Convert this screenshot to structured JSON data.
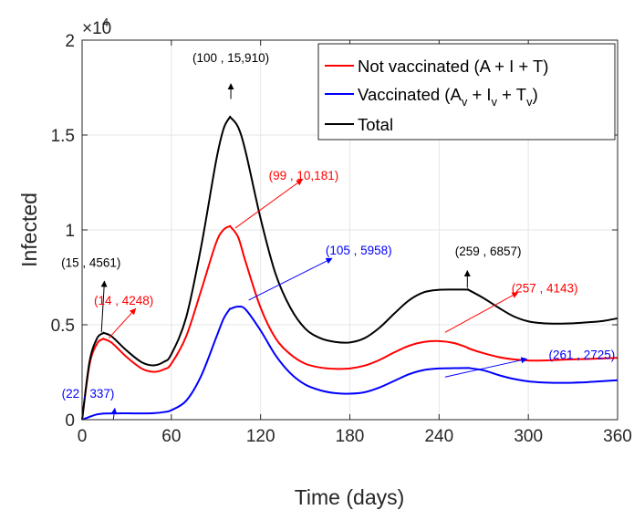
{
  "chart_data": {
    "type": "line",
    "xlabel": "Time (days)",
    "ylabel": "Infected",
    "xlim": [
      0,
      360
    ],
    "ylim": [
      0,
      20000
    ],
    "x_ticks": [
      0,
      60,
      120,
      180,
      240,
      300,
      360
    ],
    "y_ticks": [
      0,
      5000,
      10000,
      15000,
      20000
    ],
    "x_tick_labels": [
      "0",
      "60",
      "120",
      "180",
      "240",
      "300",
      "360"
    ],
    "y_tick_labels": [
      "0",
      "0.5",
      "1",
      "1.5",
      "2"
    ],
    "y_exponent_base": "×10",
    "y_exponent_power": "4",
    "grid": true,
    "legend_position": "top-right",
    "x": [
      0,
      5,
      10,
      14,
      15,
      20,
      30,
      40,
      48,
      55,
      60,
      70,
      80,
      90,
      95,
      99,
      100,
      105,
      110,
      120,
      130,
      140,
      150,
      160,
      170,
      180,
      190,
      200,
      210,
      220,
      230,
      240,
      250,
      259,
      260,
      270,
      280,
      290,
      300,
      310,
      320,
      330,
      340,
      350,
      360
    ],
    "series": [
      {
        "name": "Not vaccinated (A + I + T)",
        "color": "#ff0000",
        "values": [
          0,
          2900,
          4000,
          4248,
          4240,
          4050,
          3300,
          2700,
          2520,
          2650,
          2950,
          4400,
          6800,
          9300,
          10000,
          10181,
          10150,
          9600,
          8300,
          5900,
          4300,
          3450,
          2950,
          2750,
          2680,
          2700,
          2850,
          3150,
          3550,
          3900,
          4100,
          4143,
          4040,
          3800,
          3750,
          3500,
          3300,
          3180,
          3120,
          3120,
          3150,
          3180,
          3200,
          3230,
          3260
        ]
      },
      {
        "name": "Vaccinated (Av + Iv + Tv)",
        "color": "#0000ff",
        "values": [
          0,
          150,
          280,
          320,
          325,
          330,
          337,
          330,
          340,
          400,
          500,
          1000,
          2300,
          4300,
          5300,
          5800,
          5850,
          5958,
          5800,
          4700,
          3400,
          2450,
          1850,
          1550,
          1400,
          1370,
          1450,
          1700,
          2050,
          2400,
          2620,
          2700,
          2715,
          2725,
          2720,
          2600,
          2350,
          2150,
          2020,
          1960,
          1940,
          1950,
          1980,
          2030,
          2080
        ]
      },
      {
        "name": "Total",
        "color": "#000000",
        "values": [
          0,
          3050,
          4280,
          4550,
          4561,
          4380,
          3640,
          3030,
          2860,
          3050,
          3450,
          5400,
          9100,
          13600,
          15300,
          15900,
          15910,
          15400,
          14100,
          10600,
          7700,
          5900,
          4800,
          4300,
          4100,
          4070,
          4300,
          4850,
          5600,
          6300,
          6720,
          6843,
          6857,
          6850,
          6830,
          6400,
          5900,
          5450,
          5180,
          5080,
          5060,
          5080,
          5130,
          5200,
          5340
        ]
      }
    ],
    "annotations": [
      {
        "text": "(100 , 15,910)",
        "series": "Total",
        "color": "#000000",
        "label_x": 100,
        "label_y": 18850,
        "arrow_from": [
          100,
          16900
        ],
        "arrow_to": [
          100,
          17700
        ]
      },
      {
        "text": "(15 , 4561)",
        "series": "Total",
        "color": "#000000",
        "label_x": 6,
        "label_y": 8050,
        "arrow_from": [
          13,
          4600
        ],
        "arrow_to": [
          15,
          7300
        ]
      },
      {
        "text": "(14 , 4248)",
        "series": "Not vaccinated (A + I + T)",
        "color": "#ff0000",
        "label_x": 28,
        "label_y": 6050,
        "arrow_from": [
          18,
          4300
        ],
        "arrow_to": [
          36,
          5850
        ]
      },
      {
        "text": "(22 , 337)",
        "series": "Vaccinated (Av + Iv + Tv)",
        "color": "#0000ff",
        "label_x": 4,
        "label_y": 1150,
        "arrow_from": [
          21,
          0
        ],
        "arrow_to": [
          22,
          600
        ]
      },
      {
        "text": "(99 , 10,181)",
        "series": "Not vaccinated (A + I + T)",
        "color": "#ff0000",
        "label_x": 149,
        "label_y": 12650,
        "arrow_from": [
          103,
          10100
        ],
        "arrow_to": [
          148,
          12650
        ]
      },
      {
        "text": "(105 , 5958)",
        "series": "Vaccinated (Av + Iv + Tv)",
        "color": "#0000ff",
        "label_x": 186,
        "label_y": 8700,
        "arrow_from": [
          112,
          6300
        ],
        "arrow_to": [
          168,
          8500
        ]
      },
      {
        "text": "(259 , 6857)",
        "series": "Total",
        "color": "#000000",
        "label_x": 273,
        "label_y": 8650,
        "arrow_from": [
          259,
          6950
        ],
        "arrow_to": [
          259,
          7850
        ]
      },
      {
        "text": "(257 , 4143)",
        "series": "Not vaccinated (A + I + T)",
        "color": "#ff0000",
        "label_x": 311,
        "label_y": 6700,
        "arrow_from": [
          244,
          4600
        ],
        "arrow_to": [
          293,
          6700
        ]
      },
      {
        "text": "(261 , 2725)",
        "series": "Vaccinated (Av + Iv + Tv)",
        "color": "#0000ff",
        "label_x": 336,
        "label_y": 3200,
        "arrow_from": [
          244,
          2250
        ],
        "arrow_to": [
          299,
          3200
        ]
      }
    ]
  }
}
